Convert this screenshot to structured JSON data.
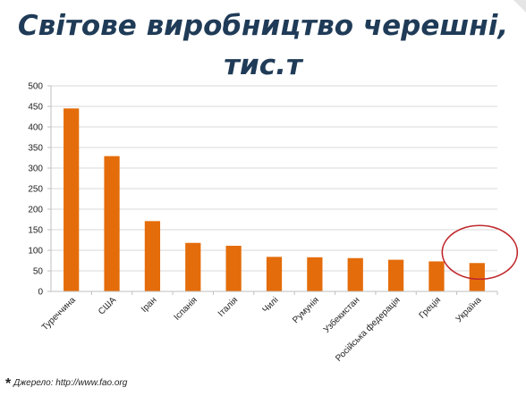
{
  "chart_data": {
    "type": "bar",
    "title_lines": [
      "Світове виробництво черешні,",
      "тис.т"
    ],
    "categories": [
      "Туреччина",
      "США",
      "Іран",
      "Іспанія",
      "Італія",
      "Чилі",
      "Румунія",
      "Узбекистан",
      "Російська федерація",
      "Греція",
      "Україна"
    ],
    "values": [
      445,
      329,
      171,
      118,
      111,
      84,
      83,
      81,
      77,
      73,
      69
    ],
    "yticks": [
      0,
      50,
      100,
      150,
      200,
      250,
      300,
      350,
      400,
      450,
      500
    ],
    "ylim": [
      0,
      500
    ],
    "xlabel": "",
    "ylabel": "",
    "grid": true,
    "legend": "none",
    "highlighted_category": "Україна",
    "colors": {
      "bar": "#e46c0a",
      "grid": "#d9d9d9",
      "highlight_ring": "#c0282d",
      "title": "#1f3b57"
    }
  },
  "source": {
    "marker": "*",
    "text": "Джерело: http://www.fao.org"
  }
}
